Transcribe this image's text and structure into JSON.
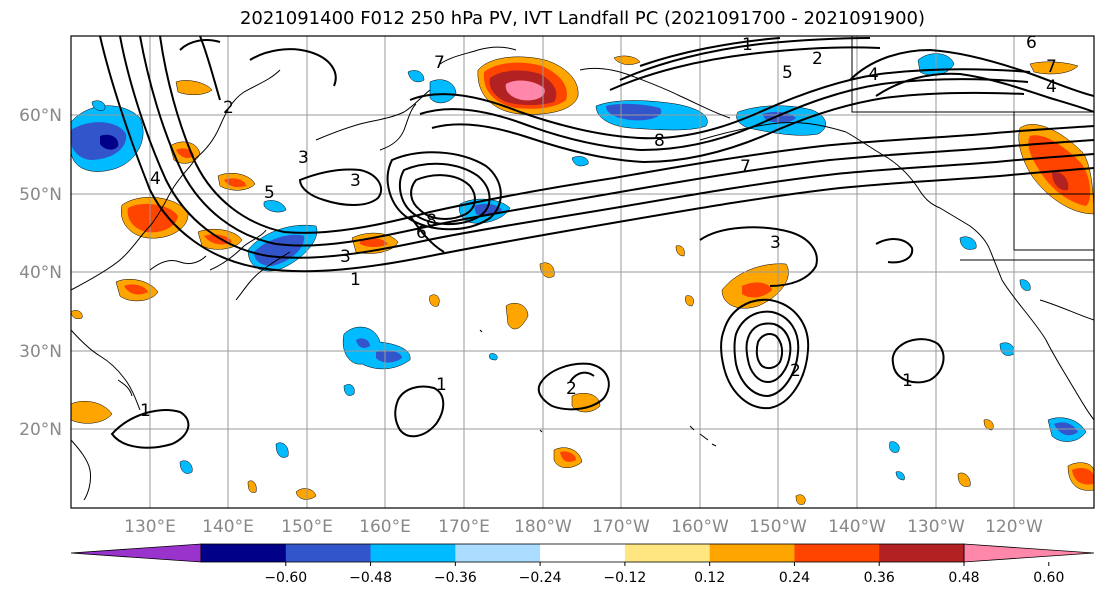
{
  "title": "2021091400 F012 250 hPa PV, IVT Landfall PC (2021091700 - 2021091900)",
  "lat_labels": [
    "60°N",
    "50°N",
    "40°N",
    "30°N",
    "20°N"
  ],
  "lon_labels": [
    "130°E",
    "140°E",
    "150°E",
    "160°E",
    "170°E",
    "180°W",
    "170°W",
    "160°W",
    "150°W",
    "140°W",
    "130°W",
    "120°W"
  ],
  "colorbar": {
    "ticks": [
      "−0.60",
      "−0.48",
      "−0.36",
      "−0.24",
      "−0.12",
      "0.12",
      "0.24",
      "0.36",
      "0.48",
      "0.60"
    ],
    "colors": [
      "#9933cc",
      "#000088",
      "#3355cc",
      "#00bbff",
      "#aaddff",
      "#ffffff",
      "#ffe680",
      "#ffa500",
      "#ff4400",
      "#b22222",
      "#ff88aa"
    ]
  },
  "contour_labels": [
    "1",
    "2",
    "3",
    "4",
    "5",
    "6",
    "7",
    "8",
    "1",
    "2",
    "3",
    "4",
    "5",
    "7",
    "8",
    "1",
    "2",
    "3",
    "1",
    "1",
    "2",
    "3",
    "4",
    "6",
    "7"
  ]
}
